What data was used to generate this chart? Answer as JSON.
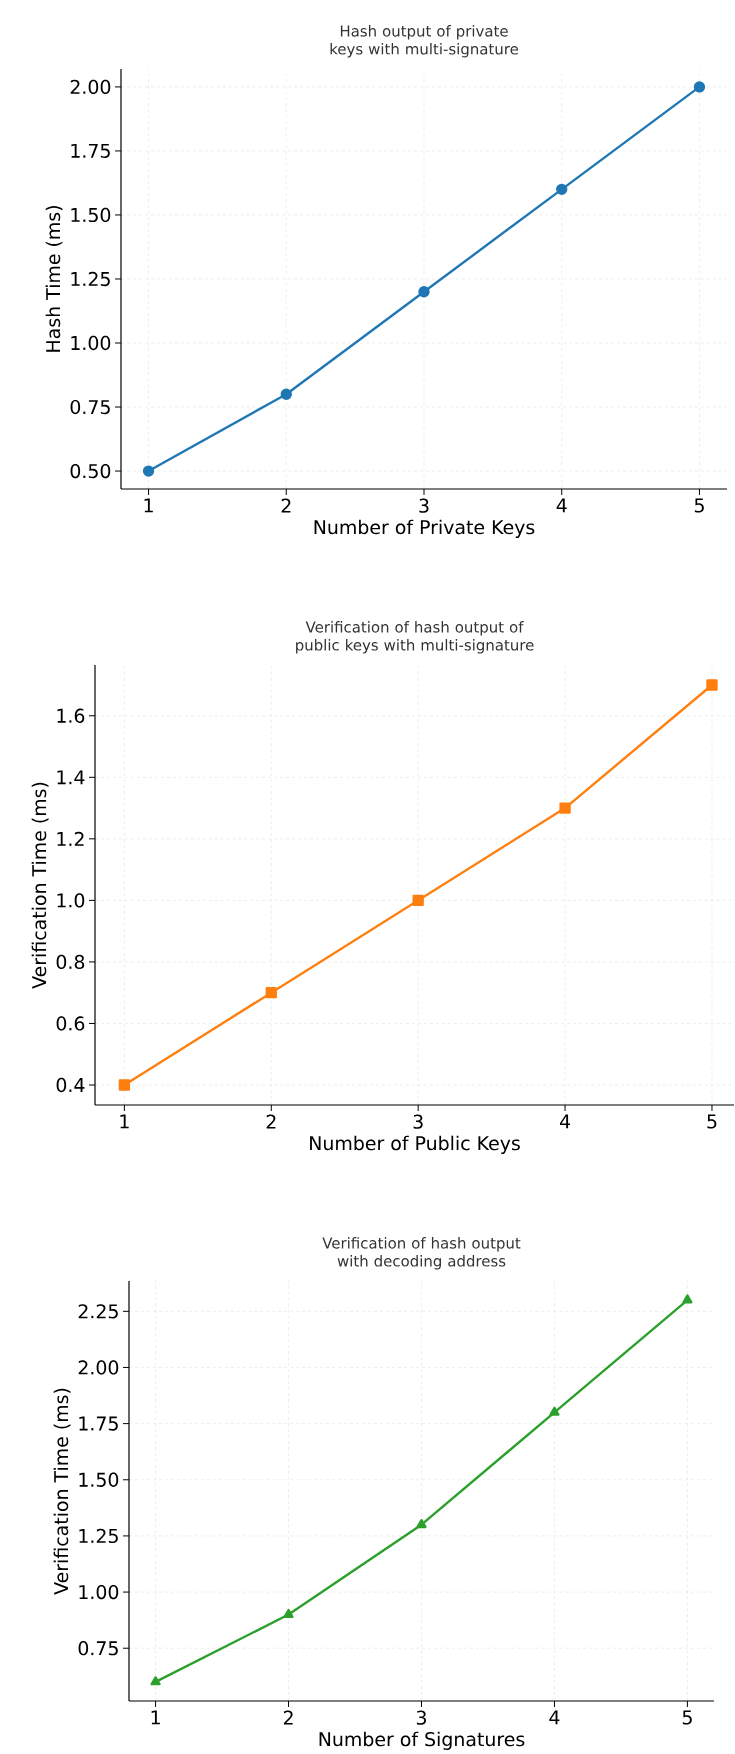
{
  "chart_data": [
    {
      "type": "line",
      "title": "Hash output of private keys with multi-signature",
      "xlabel": "Number of Private Keys",
      "ylabel": "Hash Time (ms)",
      "x": [
        1,
        2,
        3,
        4,
        5
      ],
      "values": [
        0.5,
        0.8,
        1.2,
        1.6,
        2.0
      ],
      "color": "#1f77b4",
      "marker": "circle",
      "grid": true,
      "xlim": [
        0.8,
        5.2
      ],
      "ylim": [
        0.43,
        2.07
      ],
      "xticks": [
        1,
        2,
        3,
        4,
        5
      ],
      "yticks": [
        {
          "value": 0.5,
          "label": "0.50"
        },
        {
          "value": 0.75,
          "label": "0.75"
        },
        {
          "value": 1.0,
          "label": "1.00"
        },
        {
          "value": 1.25,
          "label": "1.25"
        },
        {
          "value": 1.5,
          "label": "1.50"
        },
        {
          "value": 1.75,
          "label": "1.75"
        },
        {
          "value": 2.0,
          "label": "2.00"
        }
      ]
    },
    {
      "type": "line",
      "title": "Verification of hash output of public keys with multi-signature",
      "xlabel": "Number of Public Keys",
      "ylabel": "Verification Time (ms)",
      "x": [
        1,
        2,
        3,
        4,
        5
      ],
      "values": [
        0.4,
        0.7,
        1.0,
        1.3,
        1.7
      ],
      "color": "#ff7f0e",
      "marker": "square",
      "grid": true,
      "xlim": [
        0.8,
        5.15
      ],
      "ylim": [
        0.335,
        1.765
      ],
      "xticks": [
        1,
        2,
        3,
        4,
        5
      ],
      "yticks": [
        0.4,
        0.6,
        0.8,
        {
          "value": 1.0,
          "label": "1.0"
        },
        1.2,
        1.4,
        1.6
      ]
    },
    {
      "type": "line",
      "title": "Verification of hash output with decoding address",
      "xlabel": "Number of Signatures",
      "ylabel": "Verification Time (ms)",
      "x": [
        1,
        2,
        3,
        4,
        5
      ],
      "values": [
        0.6,
        0.9,
        1.3,
        1.8,
        2.3
      ],
      "color": "#2ca02c",
      "marker": "triangle",
      "grid": true,
      "xlim": [
        0.8,
        5.2
      ],
      "ylim": [
        0.515,
        2.385
      ],
      "xticks": [
        1,
        2,
        3,
        4,
        5
      ],
      "yticks": [
        {
          "value": 0.75,
          "label": "0.75"
        },
        {
          "value": 1.0,
          "label": "1.00"
        },
        {
          "value": 1.25,
          "label": "1.25"
        },
        {
          "value": 1.5,
          "label": "1.50"
        },
        {
          "value": 1.75,
          "label": "1.75"
        },
        {
          "value": 2.0,
          "label": "2.00"
        },
        {
          "value": 2.25,
          "label": "2.25"
        }
      ]
    }
  ]
}
